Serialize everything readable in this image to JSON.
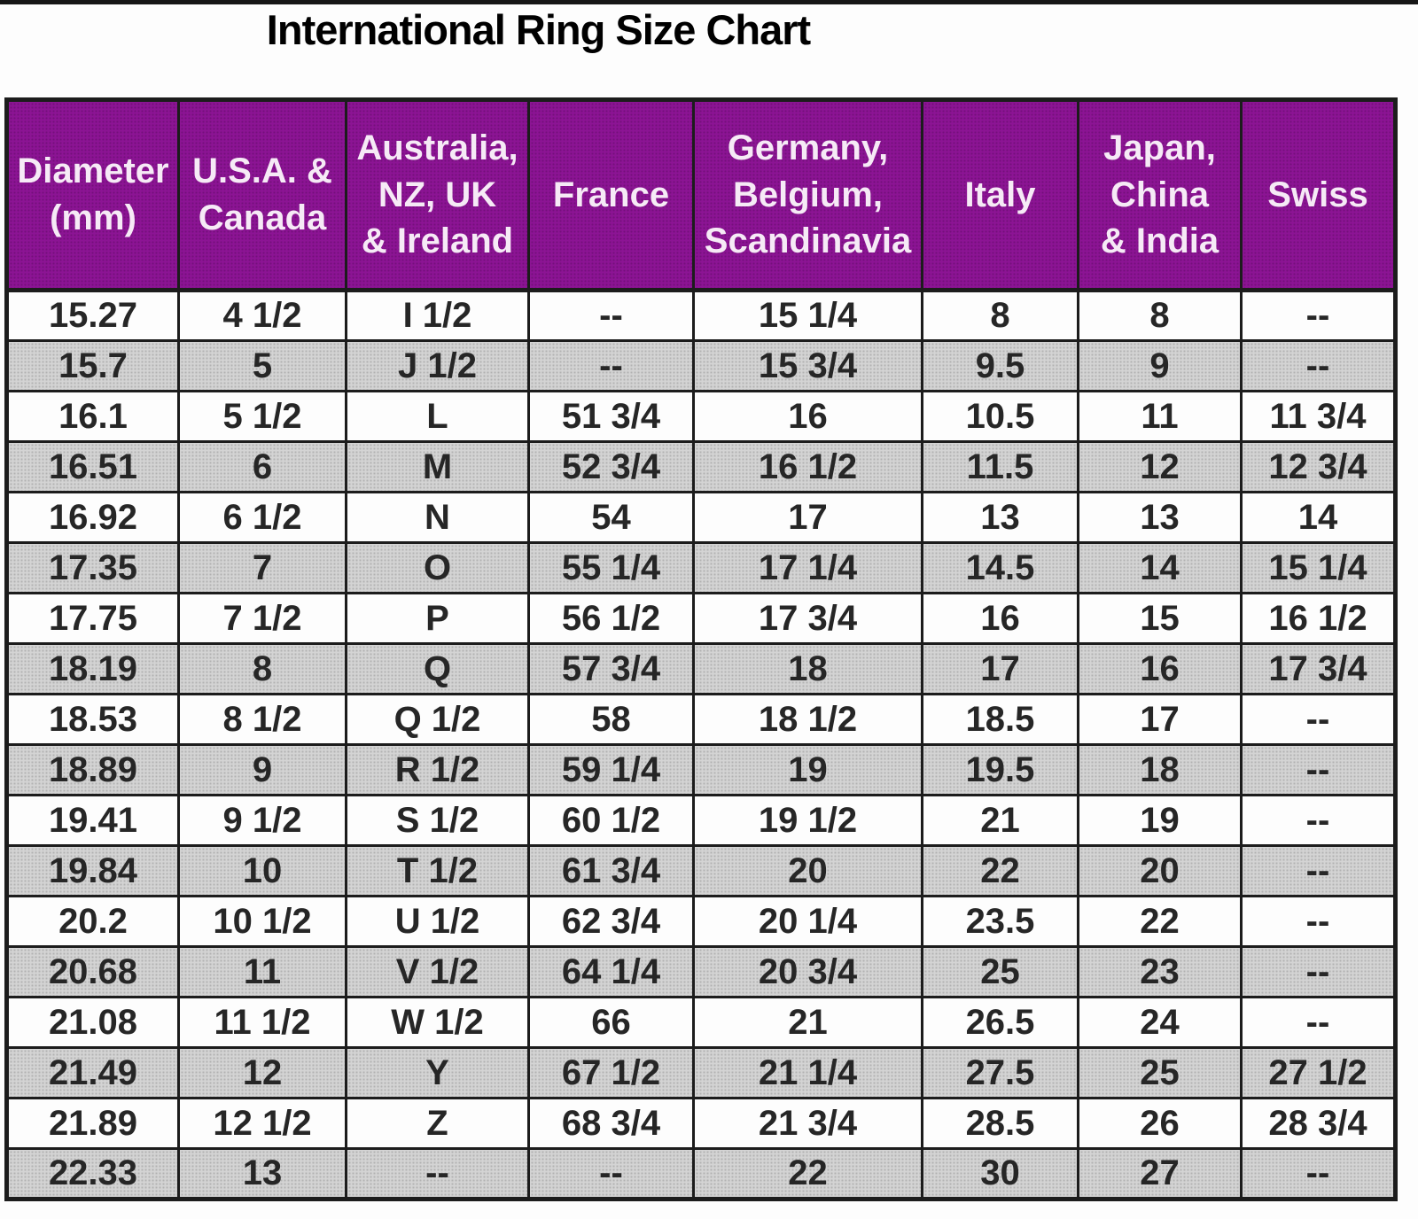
{
  "title": "International Ring Size Chart",
  "colors": {
    "header_bg": "#8C1494",
    "header_text": "#F6EAF6",
    "row_white": "#FDFDFD",
    "row_gray": "#D4D4D4",
    "border": "#1C1C1C",
    "title_text": "#000000",
    "top_bar": "#161616"
  },
  "chart_data": {
    "type": "table",
    "title": "International Ring Size Chart",
    "columns": [
      "Diameter\n(mm)",
      "U.S.A. &\nCanada",
      "Australia,\nNZ, UK\n& Ireland",
      "France",
      "Germany,\nBelgium,\nScandinavia",
      "Italy",
      "Japan,\nChina\n& India",
      "Swiss"
    ],
    "rows": [
      [
        "15.27",
        "4 1/2",
        "I 1/2",
        "--",
        "15 1/4",
        "8",
        "8",
        "--"
      ],
      [
        "15.7",
        "5",
        "J 1/2",
        "--",
        "15 3/4",
        "9.5",
        "9",
        "--"
      ],
      [
        "16.1",
        "5 1/2",
        "L",
        "51 3/4",
        "16",
        "10.5",
        "11",
        "11 3/4"
      ],
      [
        "16.51",
        "6",
        "M",
        "52 3/4",
        "16 1/2",
        "11.5",
        "12",
        "12 3/4"
      ],
      [
        "16.92",
        "6 1/2",
        "N",
        "54",
        "17",
        "13",
        "13",
        "14"
      ],
      [
        "17.35",
        "7",
        "O",
        "55 1/4",
        "17 1/4",
        "14.5",
        "14",
        "15 1/4"
      ],
      [
        "17.75",
        "7 1/2",
        "P",
        "56 1/2",
        "17 3/4",
        "16",
        "15",
        "16 1/2"
      ],
      [
        "18.19",
        "8",
        "Q",
        "57 3/4",
        "18",
        "17",
        "16",
        "17 3/4"
      ],
      [
        "18.53",
        "8 1/2",
        "Q 1/2",
        "58",
        "18 1/2",
        "18.5",
        "17",
        "--"
      ],
      [
        "18.89",
        "9",
        "R 1/2",
        "59 1/4",
        "19",
        "19.5",
        "18",
        "--"
      ],
      [
        "19.41",
        "9 1/2",
        "S 1/2",
        "60 1/2",
        "19 1/2",
        "21",
        "19",
        "--"
      ],
      [
        "19.84",
        "10",
        "T 1/2",
        "61 3/4",
        "20",
        "22",
        "20",
        "--"
      ],
      [
        "20.2",
        "10 1/2",
        "U 1/2",
        "62 3/4",
        "20 1/4",
        "23.5",
        "22",
        "--"
      ],
      [
        "20.68",
        "11",
        "V 1/2",
        "64 1/4",
        "20 3/4",
        "25",
        "23",
        "--"
      ],
      [
        "21.08",
        "11 1/2",
        "W 1/2",
        "66",
        "21",
        "26.5",
        "24",
        "--"
      ],
      [
        "21.49",
        "12",
        "Y",
        "67 1/2",
        "21 1/4",
        "27.5",
        "25",
        "27 1/2"
      ],
      [
        "21.89",
        "12 1/2",
        "Z",
        "68 3/4",
        "21 3/4",
        "28.5",
        "26",
        "28 3/4"
      ],
      [
        "22.33",
        "13",
        "--",
        "--",
        "22",
        "30",
        "27",
        "--"
      ]
    ]
  }
}
